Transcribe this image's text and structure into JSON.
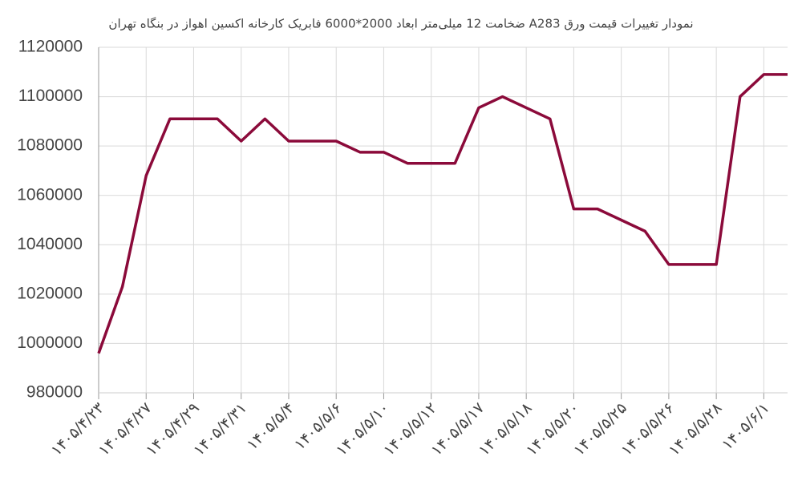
{
  "chart_data": {
    "type": "line",
    "title": "نمودار تغییرات قیمت ورق A283  ضخامت 12 میلی‌متر ابعاد 2000*6000 فابریک کارخانه اکسین اهواز در بنگاه تهران",
    "categories": [
      "۱۴۰۵/۴/۲۳",
      null,
      "۱۴۰۵/۴/۲۷",
      null,
      "۱۴۰۵/۴/۲۹",
      null,
      "۱۴۰۵/۴/۳۱",
      null,
      "۱۴۰۵/۵/۴",
      null,
      "۱۴۰۵/۵/۶",
      null,
      "۱۴۰۵/۵/۱۰",
      null,
      "۱۴۰۵/۵/۱۲",
      null,
      "۱۴۰۵/۵/۱۷",
      null,
      "۱۴۰۵/۵/۱۸",
      null,
      "۱۴۰۵/۵/۲۰",
      null,
      "۱۴۰۵/۵/۲۵",
      null,
      "۱۴۰۵/۵/۲۶",
      null,
      "۱۴۰۵/۵/۲۸",
      null,
      "۱۴۰۵/۶/۱",
      null
    ],
    "values": [
      996000,
      1023000,
      1068000,
      1091000,
      1091000,
      1091000,
      1082000,
      1091000,
      1082000,
      1082000,
      1082000,
      1077500,
      1077500,
      1073000,
      1073000,
      1073000,
      1095500,
      1100000,
      1095500,
      1091000,
      1054500,
      1054500,
      1050000,
      1045500,
      1032000,
      1032000,
      1032000,
      1100000,
      1109000,
      1109000
    ],
    "color": "#8b0a3a",
    "ylim": [
      980000,
      1120000
    ],
    "yticks": [
      980000,
      1000000,
      1020000,
      1040000,
      1060000,
      1080000,
      1100000,
      1120000
    ],
    "grid": true
  }
}
